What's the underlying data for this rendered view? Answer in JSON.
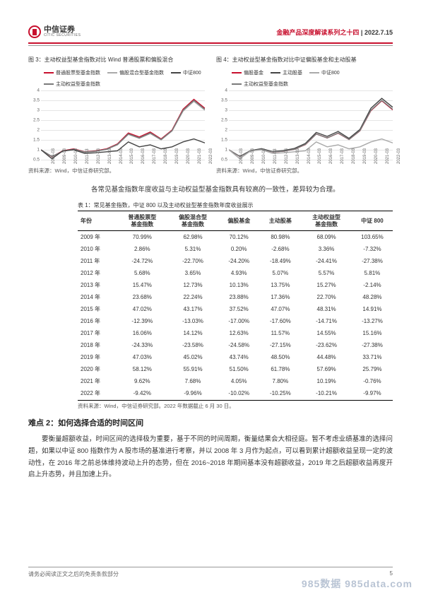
{
  "header": {
    "logo_cn": "中信证券",
    "logo_en": "CITIC SECURITIES",
    "series_title": "金融产品深度解读系列之十四",
    "date": "2022.7.15"
  },
  "chart3": {
    "title": "图 3：主动权益型基金指数对比 Wind 普通股票和偏股混合",
    "legend": [
      {
        "label": "普通股票型基金指数",
        "color": "#c8102e"
      },
      {
        "label": "偏股混合型基金指数",
        "color": "#a9a9a9"
      },
      {
        "label": "中证800",
        "color": "#444444"
      },
      {
        "label": "主动权益型基金指数",
        "color": "#7a7a7a"
      }
    ],
    "y_ticks": [
      "0.5",
      "1",
      "1.5",
      "2",
      "2.5",
      "3",
      "3.5",
      "4"
    ],
    "y_min": 0.5,
    "y_max": 4.0,
    "x_labels": [
      "2008-03",
      "2009-03",
      "2010-03",
      "2011-03",
      "2012-03",
      "2013-03",
      "2014-03",
      "2015-03",
      "2016-03",
      "2017-03",
      "2018-03",
      "2019-03",
      "2020-03",
      "2021-03",
      "2022-03"
    ],
    "series": [
      {
        "color": "#c8102e",
        "values": [
          1.0,
          0.65,
          0.95,
          1.05,
          0.9,
          0.95,
          1.05,
          1.3,
          1.85,
          1.65,
          1.9,
          1.55,
          2.0,
          3.05,
          3.55,
          3.1
        ]
      },
      {
        "color": "#a9a9a9",
        "values": [
          1.0,
          0.66,
          0.92,
          1.02,
          0.88,
          0.92,
          1.02,
          1.25,
          1.78,
          1.58,
          1.82,
          1.5,
          1.95,
          2.95,
          3.45,
          3.0
        ]
      },
      {
        "color": "#7a7a7a",
        "values": [
          1.0,
          0.66,
          0.93,
          1.03,
          0.89,
          0.93,
          1.03,
          1.27,
          1.8,
          1.6,
          1.85,
          1.52,
          1.97,
          3.0,
          3.5,
          3.05
        ]
      },
      {
        "color": "#444444",
        "values": [
          1.0,
          0.55,
          0.95,
          1.0,
          0.82,
          0.85,
          0.9,
          0.95,
          1.4,
          1.15,
          1.25,
          1.05,
          1.15,
          1.4,
          1.55,
          1.35
        ]
      }
    ],
    "source": "资料来源：Wind，中信证券研究部。"
  },
  "chart4": {
    "title": "图 4：主动权益型基金指数对比中证偏股基金和主动股基",
    "legend": [
      {
        "label": "偏股基金",
        "color": "#c8102e"
      },
      {
        "label": "主动股基",
        "color": "#444444"
      },
      {
        "label": "中证800",
        "color": "#a9a9a9"
      },
      {
        "label": "主动权益型基金指数",
        "color": "#7a7a7a"
      }
    ],
    "y_ticks": [
      "0.5",
      "1",
      "1.5",
      "2",
      "2.5",
      "3",
      "3.5",
      "4"
    ],
    "y_min": 0.5,
    "y_max": 4.0,
    "x_labels": [
      "2008-03",
      "2009-03",
      "2010-03",
      "2011-03",
      "2012-03",
      "2013-03",
      "2014-03",
      "2015-03",
      "2016-03",
      "2017-03",
      "2018-03",
      "2019-03",
      "2020-03",
      "2021-03",
      "2022-03"
    ],
    "series": [
      {
        "color": "#c8102e",
        "values": [
          1.0,
          0.66,
          0.94,
          1.03,
          0.89,
          0.93,
          1.03,
          1.26,
          1.8,
          1.6,
          1.84,
          1.52,
          1.96,
          2.98,
          3.48,
          3.02
        ]
      },
      {
        "color": "#444444",
        "values": [
          1.0,
          0.67,
          0.96,
          1.06,
          0.91,
          0.96,
          1.07,
          1.32,
          1.88,
          1.68,
          1.93,
          1.58,
          2.03,
          3.1,
          3.6,
          3.15
        ]
      },
      {
        "color": "#7a7a7a",
        "values": [
          1.0,
          0.66,
          0.93,
          1.03,
          0.89,
          0.93,
          1.03,
          1.27,
          1.8,
          1.6,
          1.85,
          1.52,
          1.97,
          3.0,
          3.5,
          3.05
        ]
      },
      {
        "color": "#a9a9a9",
        "values": [
          1.0,
          0.55,
          0.95,
          1.0,
          0.82,
          0.85,
          0.9,
          0.95,
          1.4,
          1.15,
          1.25,
          1.05,
          1.15,
          1.4,
          1.55,
          1.35
        ]
      }
    ],
    "source": "资料来源：Wind，中信证券研究部。"
  },
  "para1": "各常见基金指数年度收益与主动权益型基金指数具有较高的一致性，差异较为合理。",
  "table": {
    "caption": "表 1：常见基金指数，中证 800 以及主动权益型基金指数年度收益展示",
    "columns": [
      "年份",
      "普通股票型\n基金指数",
      "偏股混合型\n基金指数",
      "偏股基金",
      "主动股基",
      "主动权益型\n基金指数",
      "中证 800"
    ],
    "rows": [
      [
        "2009 年",
        "70.99%",
        "62.98%",
        "70.12%",
        "80.98%",
        "68.09%",
        "103.65%"
      ],
      [
        "2010 年",
        "2.86%",
        "5.31%",
        "0.20%",
        "-2.68%",
        "3.36%",
        "-7.32%"
      ],
      [
        "2011 年",
        "-24.72%",
        "-22.70%",
        "-24.20%",
        "-18.49%",
        "-24.41%",
        "-27.38%"
      ],
      [
        "2012 年",
        "5.68%",
        "3.65%",
        "4.93%",
        "5.07%",
        "5.57%",
        "5.81%"
      ],
      [
        "2013 年",
        "15.47%",
        "12.73%",
        "10.13%",
        "13.75%",
        "15.27%",
        "-2.14%"
      ],
      [
        "2014 年",
        "23.68%",
        "22.24%",
        "23.88%",
        "17.36%",
        "22.70%",
        "48.28%"
      ],
      [
        "2015 年",
        "47.02%",
        "43.17%",
        "37.52%",
        "47.07%",
        "48.31%",
        "14.91%"
      ],
      [
        "2016 年",
        "-12.39%",
        "-13.03%",
        "-17.00%",
        "-17.60%",
        "-14.71%",
        "-13.27%"
      ],
      [
        "2017 年",
        "16.06%",
        "14.12%",
        "12.63%",
        "11.57%",
        "14.55%",
        "15.16%"
      ],
      [
        "2018 年",
        "-24.33%",
        "-23.58%",
        "-24.58%",
        "-27.15%",
        "-23.62%",
        "-27.38%"
      ],
      [
        "2019 年",
        "47.03%",
        "45.02%",
        "43.74%",
        "48.50%",
        "44.48%",
        "33.71%"
      ],
      [
        "2020 年",
        "58.12%",
        "55.91%",
        "51.50%",
        "61.78%",
        "57.69%",
        "25.79%"
      ],
      [
        "2021 年",
        "9.62%",
        "7.68%",
        "4.05%",
        "7.80%",
        "10.19%",
        "-0.76%"
      ],
      [
        "2022 年",
        "-9.42%",
        "-9.96%",
        "-10.02%",
        "-10.25%",
        "-10.21%",
        "-9.97%"
      ]
    ],
    "source": "资料来源：Wind，中信证券研究部。2022 年数据截止 6 月 30 日。"
  },
  "section2": {
    "title": "难点 2：如何选择合适的时间区间",
    "para": "要衡量超额收益，时间区间的选择极为重要，基于不同的时间周期，衡量结果会大相径庭。暂不考虑业绩基准的选择问题，如果以中证 800 指数作为 A 股市场的基准进行考察，并以 2008 年 3 月作为起点，可以看到累计超额收益呈现一定的波动性，在 2016 年之前总体维持波动上升的态势，但在 2016~2018 年期间基本没有超额收益，2019 年之后超额收益再度开启上升态势，并且加速上升。"
  },
  "footer": {
    "disclaimer": "请务必阅读正文之后的免责条款部分",
    "page": "5"
  },
  "watermark": "985数据 985data.com"
}
